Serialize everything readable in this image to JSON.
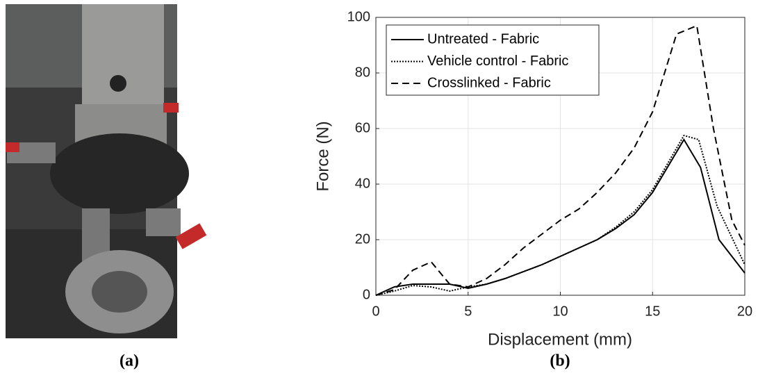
{
  "panel_labels": [
    "(a)",
    "(b)"
  ],
  "chart_data": {
    "type": "line",
    "xlabel": "Displacement (mm)",
    "ylabel": "Force (N)",
    "xlim": [
      0,
      20
    ],
    "ylim": [
      0,
      100
    ],
    "xticks": [
      0,
      5,
      10,
      15,
      20
    ],
    "yticks": [
      0,
      20,
      40,
      60,
      80,
      100
    ],
    "grid": true,
    "legend": "upper-left",
    "series": [
      {
        "name": "Untreated - Fabric",
        "color": "#000000",
        "dash": "solid",
        "x": [
          0,
          1,
          2,
          3,
          4,
          5,
          6,
          7,
          8,
          9,
          10,
          11,
          12,
          13,
          14,
          15,
          16.7,
          17.6,
          18.6,
          20
        ],
        "values": [
          0,
          3,
          4,
          4,
          4,
          2.5,
          4,
          6,
          8.5,
          11,
          14,
          17,
          20,
          24,
          29,
          37,
          56,
          46,
          20,
          8
        ]
      },
      {
        "name": "Vehicle control - Fabric",
        "color": "#000000",
        "dash": "dotted",
        "x": [
          0,
          1,
          2,
          3,
          4,
          5,
          6,
          7,
          8,
          9,
          10,
          11,
          12,
          13,
          14,
          15,
          16.7,
          17.5,
          18.5,
          20
        ],
        "values": [
          0,
          1.5,
          3.5,
          3,
          1.5,
          3,
          4,
          6,
          8.5,
          11,
          14,
          17,
          20,
          24.5,
          30,
          38,
          57.5,
          56,
          32,
          11
        ]
      },
      {
        "name": "Crosslinked - Fabric",
        "color": "#000000",
        "dash": "dashed",
        "x": [
          0,
          1,
          2,
          3,
          4,
          5,
          6,
          7,
          8,
          9,
          10,
          11,
          12,
          13,
          14,
          15,
          16.3,
          17.4,
          18.3,
          19.3,
          20
        ],
        "values": [
          0,
          2,
          9,
          12,
          4,
          3,
          6,
          11,
          17,
          22,
          27,
          31,
          37,
          44,
          53,
          66,
          94,
          97,
          60,
          27,
          18
        ]
      }
    ]
  }
}
